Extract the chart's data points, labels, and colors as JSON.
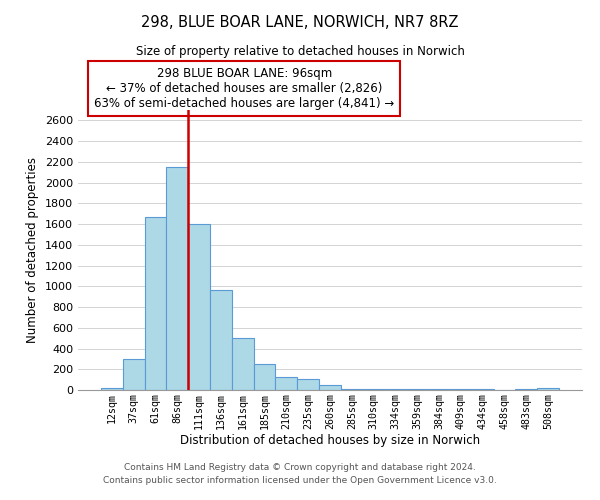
{
  "title": "298, BLUE BOAR LANE, NORWICH, NR7 8RZ",
  "subtitle": "Size of property relative to detached houses in Norwich",
  "xlabel": "Distribution of detached houses by size in Norwich",
  "ylabel": "Number of detached properties",
  "bar_labels": [
    "12sqm",
    "37sqm",
    "61sqm",
    "86sqm",
    "111sqm",
    "136sqm",
    "161sqm",
    "185sqm",
    "210sqm",
    "235sqm",
    "260sqm",
    "285sqm",
    "310sqm",
    "334sqm",
    "359sqm",
    "384sqm",
    "409sqm",
    "434sqm",
    "458sqm",
    "483sqm",
    "508sqm"
  ],
  "bar_values": [
    20,
    300,
    1670,
    2150,
    1600,
    960,
    505,
    255,
    130,
    105,
    45,
    5,
    5,
    5,
    5,
    5,
    5,
    5,
    0,
    5,
    20
  ],
  "bar_color": "#add8e6",
  "bar_edge_color": "#5b9bd5",
  "bar_edge_width": 0.8,
  "ylim": [
    0,
    2700
  ],
  "yticks": [
    0,
    200,
    400,
    600,
    800,
    1000,
    1200,
    1400,
    1600,
    1800,
    2000,
    2200,
    2400,
    2600
  ],
  "marker_bar_index": 3,
  "marker_color": "#cc0000",
  "annotation_line1": "298 BLUE BOAR LANE: 96sqm",
  "annotation_line2": "← 37% of detached houses are smaller (2,826)",
  "annotation_line3": "63% of semi-detached houses are larger (4,841) →",
  "annotation_box_edge": "#cc0000",
  "footer_line1": "Contains HM Land Registry data © Crown copyright and database right 2024.",
  "footer_line2": "Contains public sector information licensed under the Open Government Licence v3.0.",
  "background_color": "#ffffff",
  "grid_color": "#cccccc"
}
